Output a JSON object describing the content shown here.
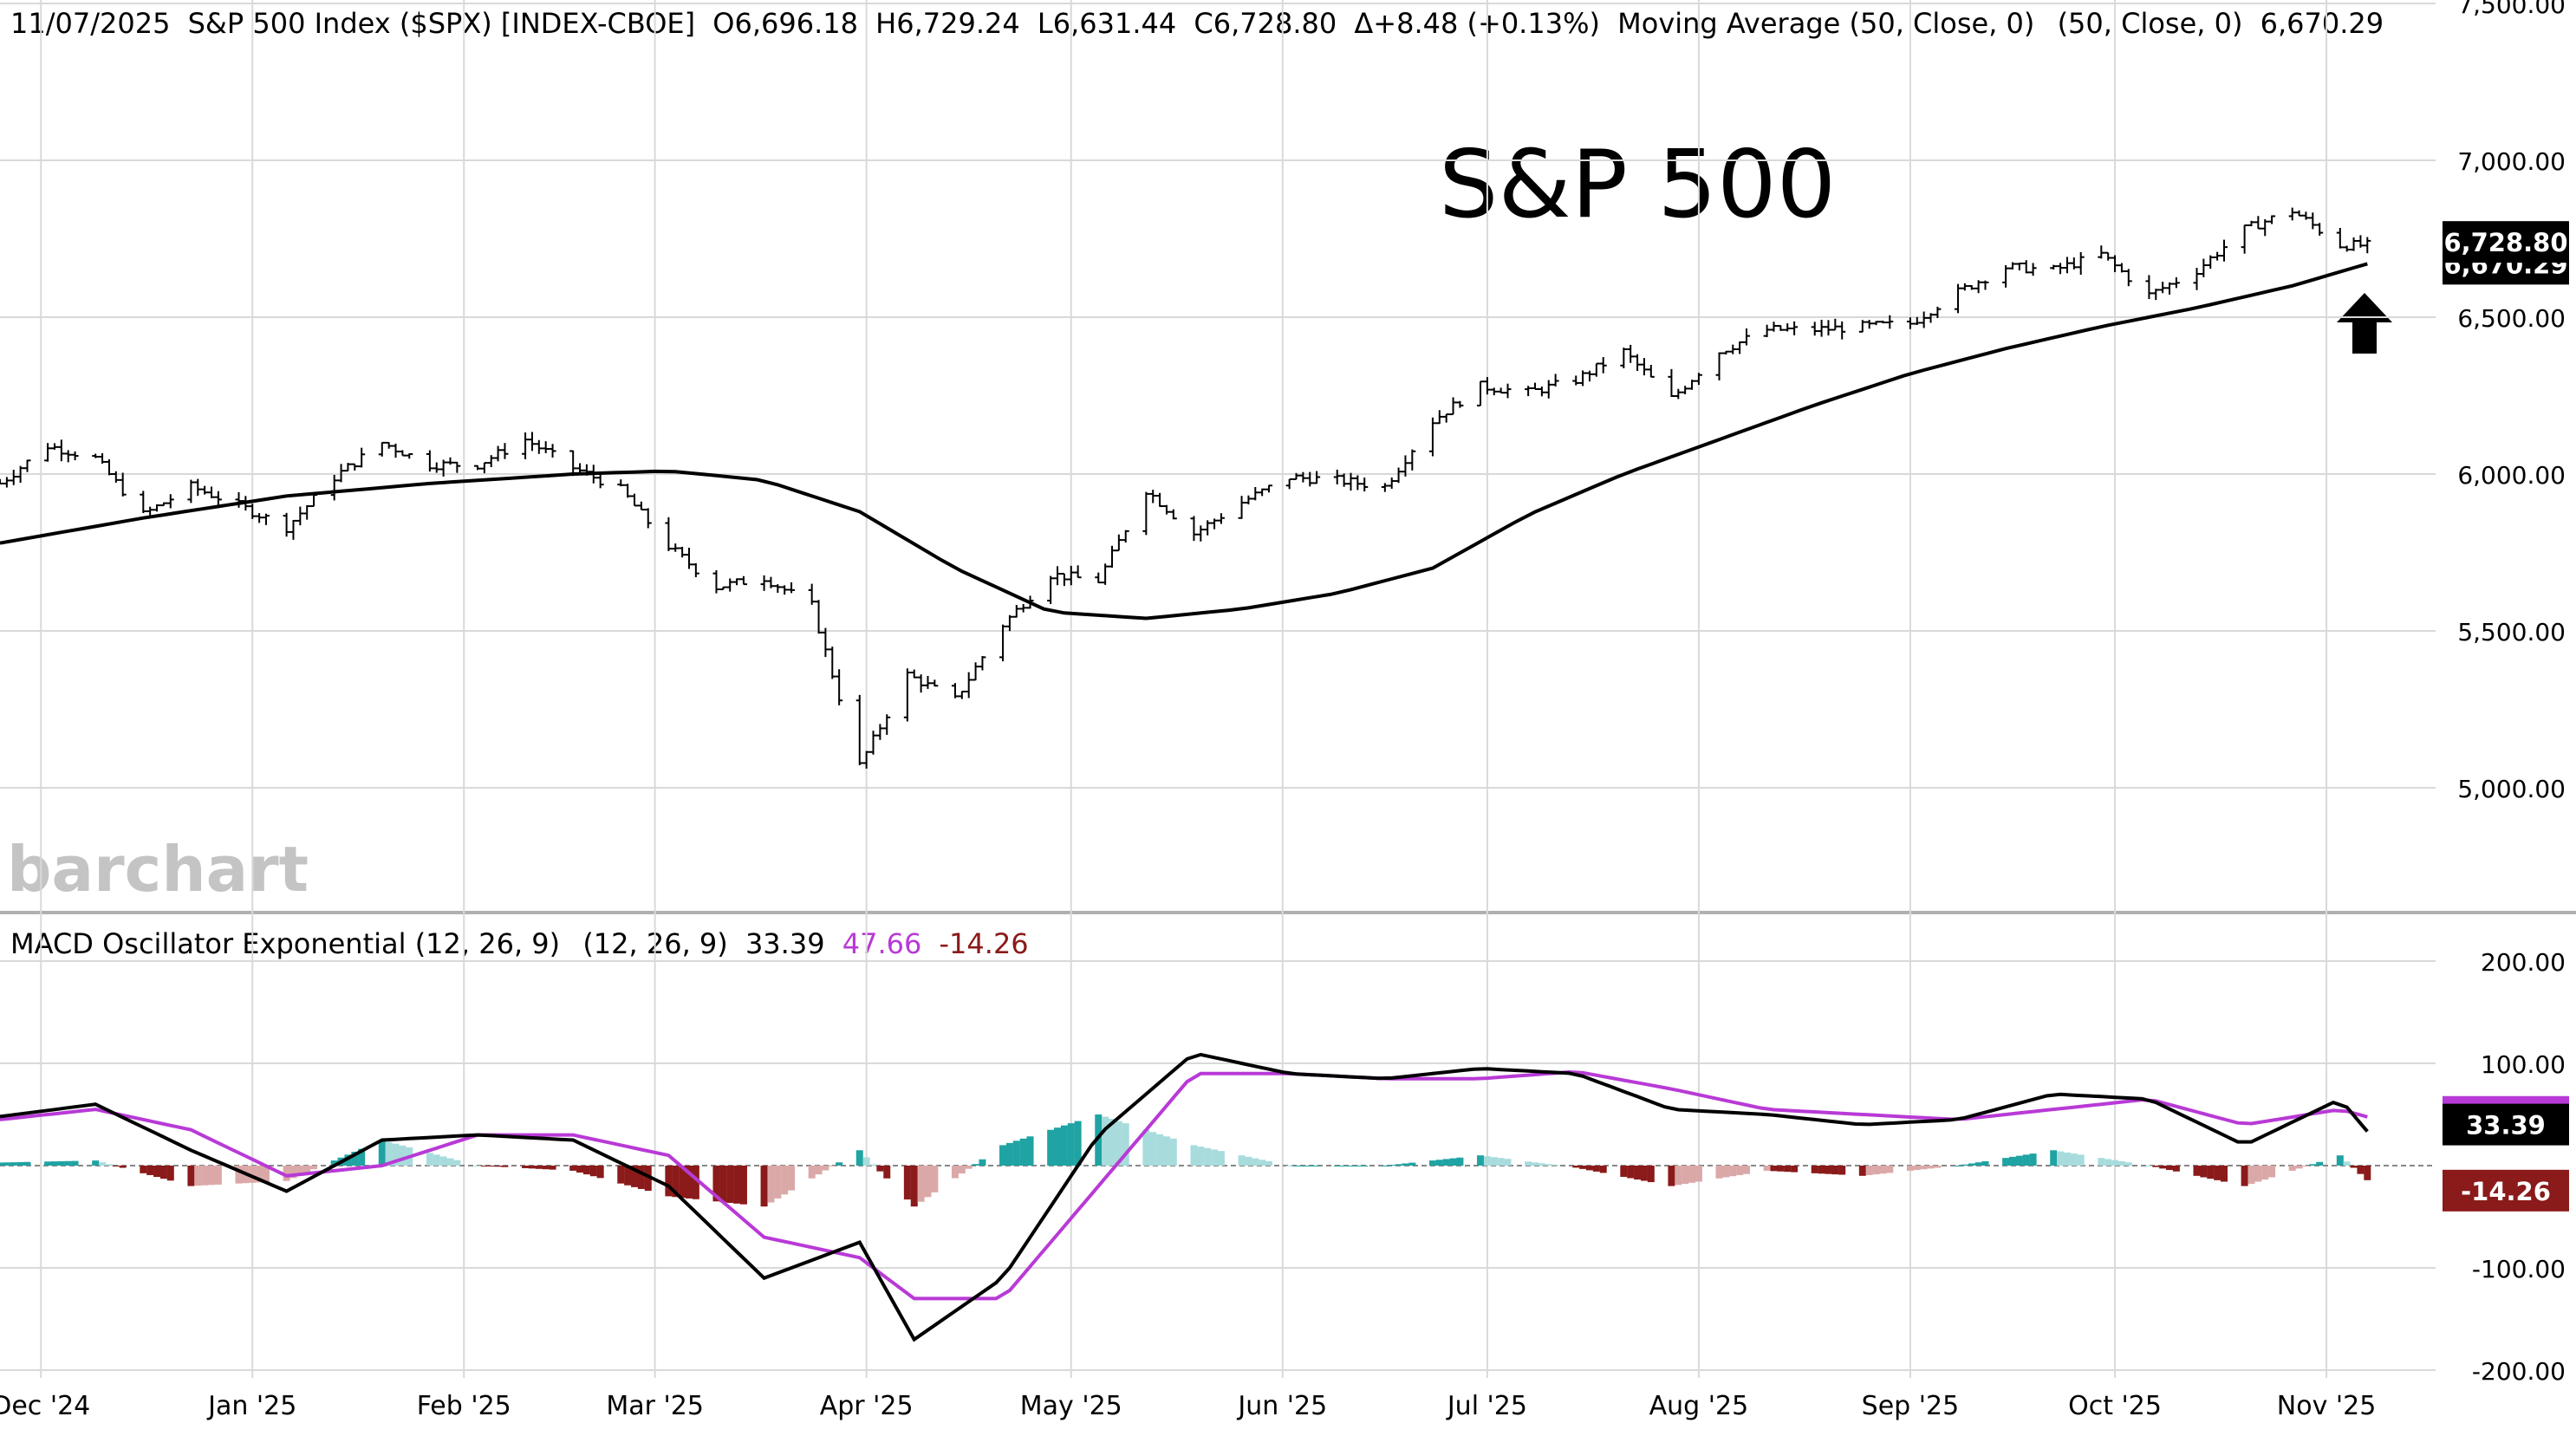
{
  "header": {
    "date": "11/07/2025",
    "symbol_text": "S&P 500 Index ($SPX) [INDEX-CBOE]",
    "open": "O6,696.18",
    "high": "H6,729.24",
    "low": "L6,631.44",
    "close": "C6,728.80",
    "change": "Δ+8.48 (+0.13%)",
    "ma_label": "Moving Average (50, Close, 0)",
    "ma_params": "(50, Close, 0)",
    "ma_value": "6,670.29"
  },
  "chart_title": "S&P 500",
  "watermark": "barchart",
  "price_axis": {
    "ticks": [
      "7,500.00",
      "7,000.00",
      "6,500.00",
      "6,000.00",
      "5,500.00",
      "5,000.00"
    ],
    "last_price_label": "6,728.80",
    "hidden_ma_label": "6,670.29"
  },
  "macd_header": {
    "label": "MACD Oscillator Exponential (12, 26, 9)",
    "params": "(12, 26, 9)",
    "macd_value": "33.39",
    "signal_value": "47.66",
    "hist_value": "-14.26"
  },
  "macd_axis": {
    "ticks": [
      "200.00",
      "100.00",
      "0",
      "-100.00",
      "-200.00"
    ],
    "macd_label": "33.39",
    "signal_label": "47.66",
    "hist_label": "-14.26"
  },
  "x_axis": {
    "ticks": [
      "Dec '24",
      "Jan '25",
      "Feb '25",
      "Mar '25",
      "Apr '25",
      "May '25",
      "Jun '25",
      "Jul '25",
      "Aug '25",
      "Sep '25",
      "Oct '25",
      "Nov '25"
    ]
  },
  "colors": {
    "price_bar": "#000000",
    "ma_line": "#000000",
    "macd_line": "#000000",
    "signal_line": "#b83ad6",
    "hist_pos_rising": "#1fa3a3",
    "hist_pos_falling": "#a8dcdc",
    "hist_neg_falling": "#8b1a1a",
    "hist_neg_rising": "#dba8a8",
    "grid": "#d9d9d9",
    "arrow": "#000000"
  },
  "chart_data": [
    {
      "type": "ohlc",
      "title": "S&P 500",
      "ylim": [
        4800,
        7500
      ],
      "x_range": [
        "2024-11-25",
        "2025-11-17"
      ],
      "last_close": 6728.8,
      "series": [
        {
          "name": "S&P 500 Index ($SPX)",
          "x": [
            "2024-11-25",
            "2024-12-02",
            "2024-12-09",
            "2024-12-16",
            "2024-12-23",
            "2024-12-30",
            "2025-01-06",
            "2025-01-13",
            "2025-01-20",
            "2025-01-27",
            "2025-02-03",
            "2025-02-10",
            "2025-02-17",
            "2025-02-24",
            "2025-03-03",
            "2025-03-10",
            "2025-03-17",
            "2025-03-24",
            "2025-03-31",
            "2025-04-07",
            "2025-04-14",
            "2025-04-21",
            "2025-04-28",
            "2025-05-05",
            "2025-05-12",
            "2025-05-19",
            "2025-05-26",
            "2025-06-02",
            "2025-06-09",
            "2025-06-16",
            "2025-06-23",
            "2025-06-30",
            "2025-07-07",
            "2025-07-14",
            "2025-07-21",
            "2025-07-28",
            "2025-08-04",
            "2025-08-11",
            "2025-08-18",
            "2025-08-25",
            "2025-09-01",
            "2025-09-08",
            "2025-09-15",
            "2025-09-22",
            "2025-09-29",
            "2025-10-06",
            "2025-10-13",
            "2025-10-20",
            "2025-10-27",
            "2025-11-03",
            "2025-11-07"
          ],
          "close": [
            5970,
            6090,
            6050,
            5870,
            5960,
            5900,
            5830,
            5990,
            6100,
            6030,
            6030,
            6110,
            6020,
            5950,
            5770,
            5640,
            5670,
            5580,
            5070,
            5360,
            5280,
            5520,
            5680,
            5660,
            5950,
            5810,
            5910,
            5990,
            5980,
            5960,
            6170,
            6280,
            6260,
            6300,
            6390,
            6240,
            6390,
            6460,
            6460,
            6470,
            6480,
            6580,
            6660,
            6650,
            6700,
            6570,
            6650,
            6780,
            6840,
            6730,
            6728.8
          ]
        },
        {
          "name": "Moving Average (50, Close, 0)",
          "x": [
            "2024-11-25",
            "2024-12-16",
            "2025-01-06",
            "2025-01-27",
            "2025-02-17",
            "2025-03-03",
            "2025-03-17",
            "2025-03-31",
            "2025-04-14",
            "2025-04-28",
            "2025-05-12",
            "2025-05-26",
            "2025-06-09",
            "2025-06-23",
            "2025-07-07",
            "2025-07-21",
            "2025-08-04",
            "2025-08-18",
            "2025-09-01",
            "2025-09-15",
            "2025-09-29",
            "2025-10-13",
            "2025-10-27",
            "2025-11-07"
          ],
          "values": [
            5780,
            5860,
            5930,
            5970,
            6000,
            6010,
            5980,
            5880,
            5700,
            5560,
            5540,
            5570,
            5620,
            5700,
            5870,
            6000,
            6110,
            6220,
            6320,
            6400,
            6470,
            6530,
            6600,
            6670.29
          ]
        }
      ]
    },
    {
      "type": "line",
      "title": "MACD Oscillator Exponential (12, 26, 9)",
      "ylim": [
        -200,
        200
      ],
      "series": [
        {
          "name": "MACD",
          "x": [
            "2024-11-25",
            "2024-12-09",
            "2024-12-23",
            "2025-01-06",
            "2025-01-20",
            "2025-02-03",
            "2025-02-17",
            "2025-03-03",
            "2025-03-17",
            "2025-03-31",
            "2025-04-08",
            "2025-04-21",
            "2025-05-05",
            "2025-05-19",
            "2025-06-02",
            "2025-06-16",
            "2025-06-30",
            "2025-07-14",
            "2025-07-28",
            "2025-08-11",
            "2025-08-25",
            "2025-09-08",
            "2025-09-22",
            "2025-10-06",
            "2025-10-20",
            "2025-11-03",
            "2025-11-07"
          ],
          "values": [
            48,
            60,
            15,
            -25,
            25,
            30,
            25,
            -20,
            -110,
            -75,
            -170,
            -110,
            30,
            110,
            90,
            85,
            95,
            90,
            55,
            50,
            40,
            45,
            70,
            65,
            20,
            65,
            33.39
          ]
        },
        {
          "name": "Signal",
          "x": [
            "2024-11-25",
            "2024-12-09",
            "2024-12-23",
            "2025-01-06",
            "2025-01-20",
            "2025-02-03",
            "2025-02-17",
            "2025-03-03",
            "2025-03-17",
            "2025-03-31",
            "2025-04-08",
            "2025-04-21",
            "2025-05-05",
            "2025-05-19",
            "2025-06-02",
            "2025-06-16",
            "2025-06-30",
            "2025-07-14",
            "2025-07-28",
            "2025-08-11",
            "2025-08-25",
            "2025-09-08",
            "2025-09-22",
            "2025-10-06",
            "2025-10-20",
            "2025-11-03",
            "2025-11-07"
          ],
          "values": [
            45,
            55,
            35,
            -10,
            0,
            30,
            30,
            10,
            -70,
            -90,
            -130,
            -130,
            -20,
            90,
            90,
            85,
            85,
            92,
            75,
            55,
            50,
            45,
            55,
            65,
            40,
            55,
            47.66
          ]
        },
        {
          "name": "Histogram",
          "x": [
            "2024-11-25",
            "2024-12-09",
            "2024-12-23",
            "2025-01-06",
            "2025-01-20",
            "2025-02-03",
            "2025-02-17",
            "2025-03-03",
            "2025-03-17",
            "2025-03-31",
            "2025-04-08",
            "2025-04-21",
            "2025-05-05",
            "2025-05-19",
            "2025-06-02",
            "2025-06-16",
            "2025-06-30",
            "2025-07-14",
            "2025-07-28",
            "2025-08-11",
            "2025-08-25",
            "2025-09-08",
            "2025-09-22",
            "2025-10-06",
            "2025-10-20",
            "2025-11-03",
            "2025-11-07"
          ],
          "values": [
            3,
            5,
            -20,
            -15,
            25,
            0,
            -5,
            -30,
            -40,
            15,
            -40,
            20,
            50,
            20,
            0,
            0,
            10,
            -2,
            -20,
            -5,
            -10,
            0,
            15,
            0,
            -20,
            10,
            -14.26
          ]
        }
      ]
    }
  ]
}
